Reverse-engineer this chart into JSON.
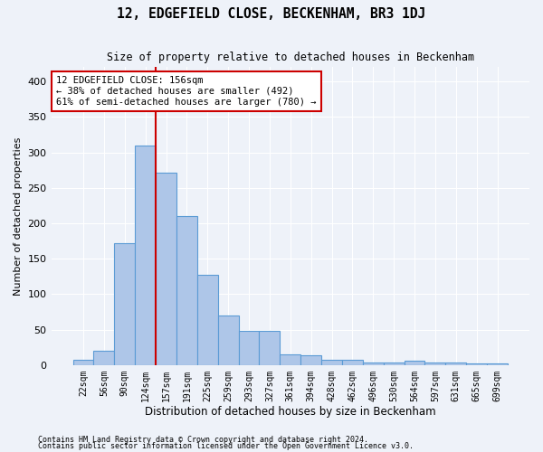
{
  "title": "12, EDGEFIELD CLOSE, BECKENHAM, BR3 1DJ",
  "subtitle": "Size of property relative to detached houses in Beckenham",
  "xlabel": "Distribution of detached houses by size in Beckenham",
  "ylabel": "Number of detached properties",
  "bar_labels": [
    "22sqm",
    "56sqm",
    "90sqm",
    "124sqm",
    "157sqm",
    "191sqm",
    "225sqm",
    "259sqm",
    "293sqm",
    "327sqm",
    "361sqm",
    "394sqm",
    "428sqm",
    "462sqm",
    "496sqm",
    "530sqm",
    "564sqm",
    "597sqm",
    "631sqm",
    "665sqm",
    "699sqm"
  ],
  "bar_values": [
    7,
    20,
    172,
    310,
    272,
    210,
    127,
    70,
    48,
    48,
    15,
    14,
    7,
    7,
    4,
    4,
    6,
    4,
    4,
    2,
    2
  ],
  "bar_color": "#aec6e8",
  "bar_edge_color": "#5b9bd5",
  "annotation_text": "12 EDGEFIELD CLOSE: 156sqm\n← 38% of detached houses are smaller (492)\n61% of semi-detached houses are larger (780) →",
  "annotation_box_color": "#ffffff",
  "annotation_box_edge": "#cc0000",
  "vline_color": "#cc0000",
  "vline_x": 3.5,
  "ylim": [
    0,
    420
  ],
  "background_color": "#eef2f9",
  "grid_color": "#ffffff",
  "footnote1": "Contains HM Land Registry data © Crown copyright and database right 2024.",
  "footnote2": "Contains public sector information licensed under the Open Government Licence v3.0."
}
